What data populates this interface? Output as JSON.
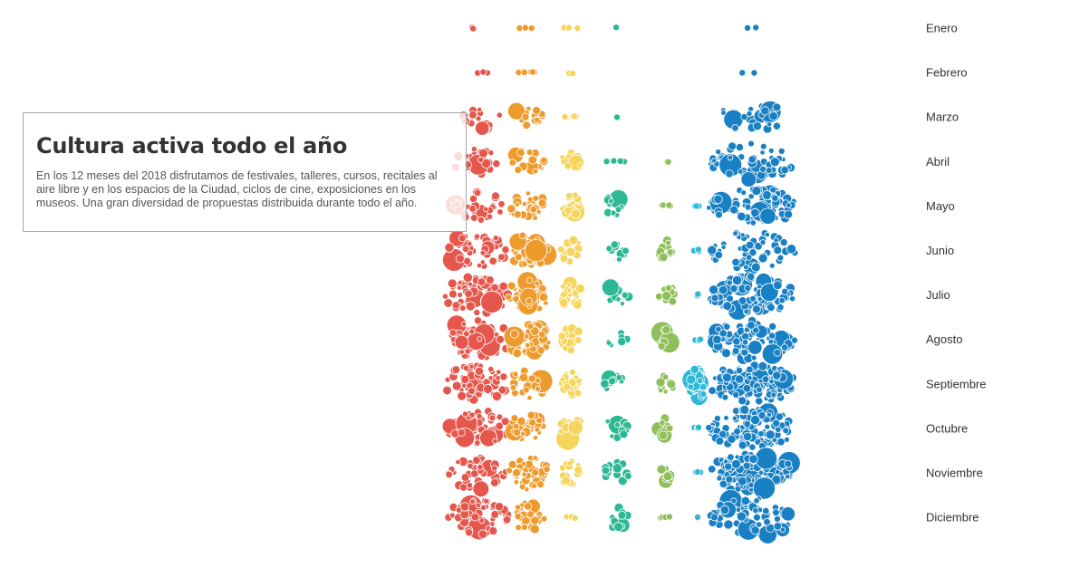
{
  "title": "Cultura activa todo el año",
  "description": "En los 12 meses del 2018 disfrutamos de festivales, talleres, cursos, recitales al aire libre y en los espacios de la Ciudad, ciclos de cine, exposiciones en los museos. Una gran diversidad de propuestas distribuida durante todo el año.",
  "colors": {
    "red": "#e5574d",
    "orange": "#ee9b2e",
    "yellow": "#f6d55c",
    "teal": "#2db894",
    "green": "#8fbf5a",
    "cyan": "#2cb8d6",
    "blue": "#1a80c4"
  },
  "chart_data": {
    "type": "beeswarm",
    "categories": [
      "Enero",
      "Febrero",
      "Marzo",
      "Abril",
      "Mayo",
      "Junio",
      "Julio",
      "Agosto",
      "Septiembre",
      "Octubre",
      "Noviembre",
      "Diciembre"
    ],
    "series": [
      {
        "color": "red",
        "counts": [
          2,
          3,
          20,
          26,
          30,
          45,
          60,
          62,
          62,
          55,
          45,
          50
        ]
      },
      {
        "color": "orange",
        "counts": [
          6,
          6,
          14,
          20,
          28,
          40,
          40,
          42,
          34,
          34,
          42,
          26
        ]
      },
      {
        "color": "yellow",
        "counts": [
          5,
          2,
          6,
          14,
          18,
          16,
          22,
          18,
          22,
          20,
          18,
          4
        ]
      },
      {
        "color": "teal",
        "counts": [
          1,
          0,
          2,
          6,
          12,
          10,
          12,
          8,
          10,
          10,
          18,
          12
        ]
      },
      {
        "color": "green",
        "counts": [
          0,
          0,
          0,
          2,
          6,
          12,
          14,
          14,
          10,
          12,
          10,
          4
        ]
      },
      {
        "color": "cyan",
        "counts": [
          0,
          0,
          0,
          0,
          4,
          4,
          5,
          5,
          40,
          5,
          6,
          1
        ]
      },
      {
        "color": "blue",
        "counts": [
          2,
          2,
          30,
          55,
          80,
          60,
          90,
          100,
          130,
          110,
          110,
          70
        ]
      }
    ]
  }
}
